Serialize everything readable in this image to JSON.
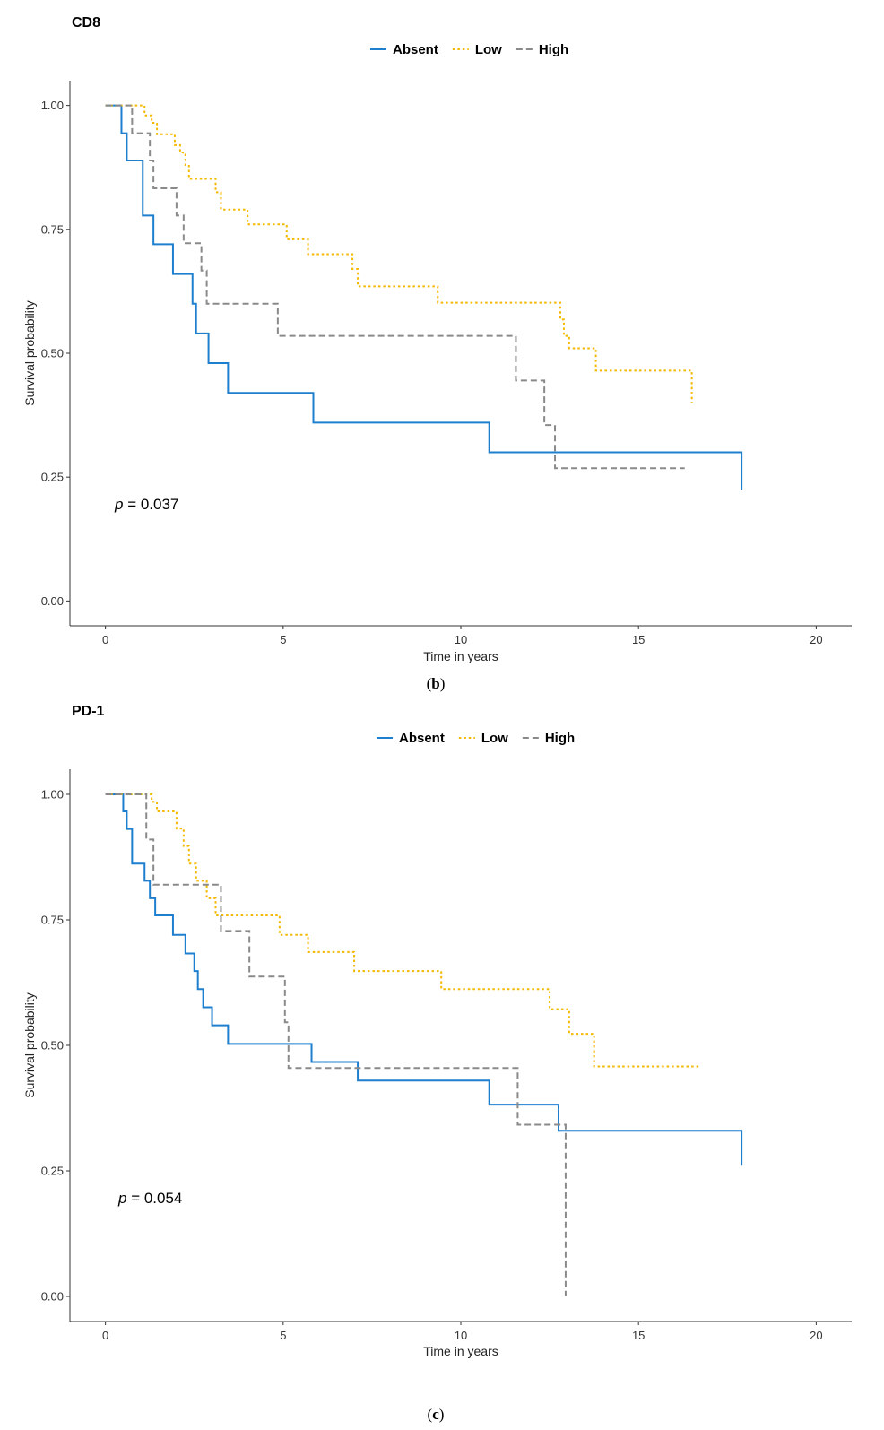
{
  "chart_data": [
    {
      "type": "line",
      "subtype": "kaplan-meier",
      "title": "CD8",
      "caption_open": "(",
      "caption_letter": "b",
      "caption_close": ")",
      "xlabel": "Time in years",
      "ylabel": "Survival probability",
      "xlim": [
        -1,
        21
      ],
      "ylim": [
        -0.05,
        1.05
      ],
      "xticks": [
        0,
        5,
        10,
        15,
        20
      ],
      "xtick_labels": [
        "0",
        "5",
        "10",
        "15",
        "20"
      ],
      "yticks": [
        0,
        0.25,
        0.5,
        0.75,
        1
      ],
      "ytick_labels": [
        "0.00",
        "0.25",
        "0.50",
        "0.75",
        "1.00"
      ],
      "annotation": {
        "p_symbol": "p",
        "p_rest": " = 0.037"
      },
      "legend": {
        "position": "top",
        "items": [
          "Absent",
          "Low",
          "High"
        ]
      },
      "series": [
        {
          "name": "Absent",
          "color": "#1f7fcf",
          "dash": "solid",
          "x": [
            0.25,
            0.45,
            0.6,
            1.05,
            1.35,
            1.9,
            2.45,
            2.55,
            2.9,
            3.45,
            5.85,
            10.8,
            17.9
          ],
          "y": [
            1.0,
            0.944,
            0.889,
            0.778,
            0.72,
            0.66,
            0.6,
            0.54,
            0.48,
            0.42,
            0.36,
            0.3,
            0.225
          ]
        },
        {
          "name": "Low",
          "color": "#f5b800",
          "dash": "dotted",
          "x": [
            0.0,
            1.1,
            1.3,
            1.45,
            1.95,
            2.1,
            2.25,
            2.35,
            3.1,
            3.25,
            4.0,
            5.1,
            5.7,
            6.95,
            7.1,
            9.35,
            12.8,
            12.9,
            13.05,
            13.8,
            16.5
          ],
          "y": [
            1.0,
            0.98,
            0.965,
            0.942,
            0.92,
            0.905,
            0.88,
            0.852,
            0.825,
            0.79,
            0.76,
            0.73,
            0.7,
            0.67,
            0.635,
            0.602,
            0.568,
            0.535,
            0.51,
            0.465,
            0.4
          ],
          "final_x": 16.5
        },
        {
          "name": "High",
          "color": "#8a8a8a",
          "dash": "dashed",
          "x": [
            0.0,
            0.75,
            1.25,
            1.35,
            2.0,
            2.2,
            2.7,
            2.85,
            4.85,
            11.55,
            12.35,
            12.65,
            16.3
          ],
          "y": [
            1.0,
            0.944,
            0.889,
            0.833,
            0.778,
            0.722,
            0.667,
            0.6,
            0.535,
            0.445,
            0.355,
            0.268,
            0.268
          ]
        }
      ]
    },
    {
      "type": "line",
      "subtype": "kaplan-meier",
      "title": "PD-1",
      "caption_open": "(",
      "caption_letter": "c",
      "caption_close": ")",
      "xlabel": "Time in years",
      "ylabel": "Survival probability",
      "xlim": [
        -1,
        21
      ],
      "ylim": [
        -0.05,
        1.05
      ],
      "xticks": [
        0,
        5,
        10,
        15,
        20
      ],
      "xtick_labels": [
        "0",
        "5",
        "10",
        "15",
        "20"
      ],
      "yticks": [
        0,
        0.25,
        0.5,
        0.75,
        1
      ],
      "ytick_labels": [
        "0.00",
        "0.25",
        "0.50",
        "0.75",
        "1.00"
      ],
      "annotation": {
        "p_symbol": "p",
        "p_rest": " = 0.054"
      },
      "legend": {
        "position": "top",
        "items": [
          "Absent",
          "Low",
          "High"
        ]
      },
      "series": [
        {
          "name": "Absent",
          "color": "#1f7fcf",
          "dash": "solid",
          "x": [
            0.3,
            0.5,
            0.6,
            0.75,
            1.1,
            1.25,
            1.4,
            1.9,
            2.25,
            2.5,
            2.6,
            2.75,
            3.0,
            3.45,
            5.8,
            7.1,
            10.8,
            12.75,
            17.9
          ],
          "y": [
            1.0,
            0.966,
            0.931,
            0.862,
            0.828,
            0.793,
            0.759,
            0.72,
            0.683,
            0.648,
            0.612,
            0.576,
            0.54,
            0.503,
            0.467,
            0.43,
            0.382,
            0.33,
            0.262
          ]
        },
        {
          "name": "Low",
          "color": "#f5b800",
          "dash": "dotted",
          "x": [
            0.0,
            1.3,
            1.45,
            2.0,
            2.2,
            2.35,
            2.55,
            2.85,
            3.1,
            4.9,
            5.7,
            7.0,
            9.45,
            12.5,
            13.05,
            13.75,
            16.7
          ],
          "y": [
            1.0,
            0.985,
            0.966,
            0.932,
            0.897,
            0.862,
            0.828,
            0.793,
            0.759,
            0.72,
            0.686,
            0.648,
            0.612,
            0.572,
            0.523,
            0.458,
            0.458
          ]
        },
        {
          "name": "High",
          "color": "#8a8a8a",
          "dash": "dashed",
          "x": [
            0.0,
            1.15,
            1.35,
            3.25,
            4.05,
            5.05,
            5.15,
            11.6,
            12.95,
            12.95
          ],
          "y": [
            1.0,
            0.91,
            0.82,
            0.728,
            0.637,
            0.546,
            0.455,
            0.342,
            0.0,
            0.0
          ]
        }
      ]
    }
  ]
}
